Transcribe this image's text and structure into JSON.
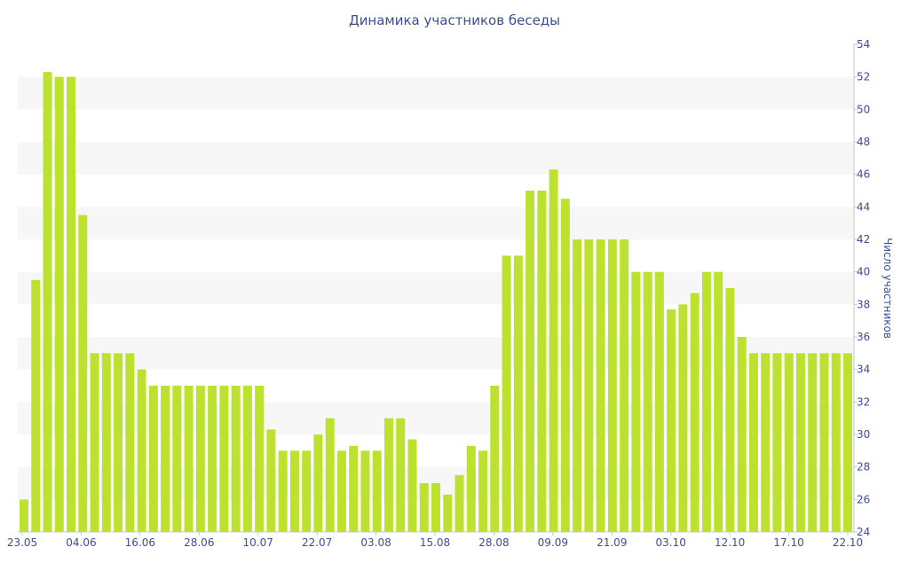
{
  "chart_data": {
    "type": "bar",
    "title": "Динамика участников беседы",
    "ylabel": "Число участников",
    "xlabel": "",
    "ylim": [
      24,
      54
    ],
    "y_ticks": [
      24,
      26,
      28,
      30,
      32,
      34,
      36,
      38,
      40,
      42,
      44,
      46,
      48,
      50,
      52,
      54
    ],
    "y_axis_side": "right",
    "grid": "alternating horizontal bands",
    "x_tick_labels": [
      "23.05",
      "04.06",
      "16.06",
      "28.06",
      "10.07",
      "22.07",
      "03.08",
      "15.08",
      "28.08",
      "09.09",
      "21.09",
      "03.10",
      "12.10",
      "17.10",
      "22.10"
    ],
    "values": [
      26,
      39.5,
      52.3,
      52,
      52,
      43.5,
      35,
      35,
      35,
      35,
      34,
      33,
      33,
      33,
      33,
      33,
      33,
      33,
      33,
      33,
      33,
      30.3,
      29,
      29,
      29,
      30,
      31,
      29,
      29.3,
      29,
      29,
      31,
      31,
      29.7,
      27,
      27,
      26.3,
      27.5,
      29.3,
      29,
      33,
      41,
      41,
      45,
      45,
      46.3,
      44.5,
      42,
      42,
      42,
      42,
      42,
      40,
      40,
      40,
      37.7,
      38,
      38.7,
      40,
      40,
      39,
      36,
      35,
      35,
      35,
      35,
      35,
      35,
      35,
      35,
      35
    ],
    "colors": {
      "bar": "#bce22f",
      "band": "#f7f7f7",
      "text": "#3d4f8f"
    }
  }
}
